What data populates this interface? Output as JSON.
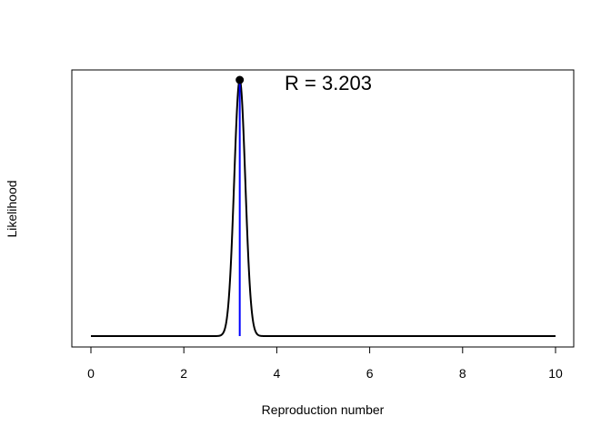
{
  "chart_data": {
    "type": "line",
    "title": "",
    "xlabel": "Reproduction number",
    "ylabel": "Likelihood",
    "xlim": [
      0,
      10
    ],
    "x_ticks": [
      0,
      2,
      4,
      6,
      8,
      10
    ],
    "x_tick_labels": [
      "0",
      "2",
      "4",
      "6",
      "8",
      "10"
    ],
    "grid": false,
    "legend": "none",
    "series": [
      {
        "color": "#000000",
        "peak_x": 3.203,
        "peak_sd": 0.12,
        "x_range": [
          0,
          10
        ]
      }
    ],
    "marker": {
      "x": 3.203,
      "color": "#0000ff"
    },
    "peak_point": {
      "x": 3.203,
      "color": "#000000"
    },
    "annotation": {
      "text": "R = 3.203"
    }
  }
}
